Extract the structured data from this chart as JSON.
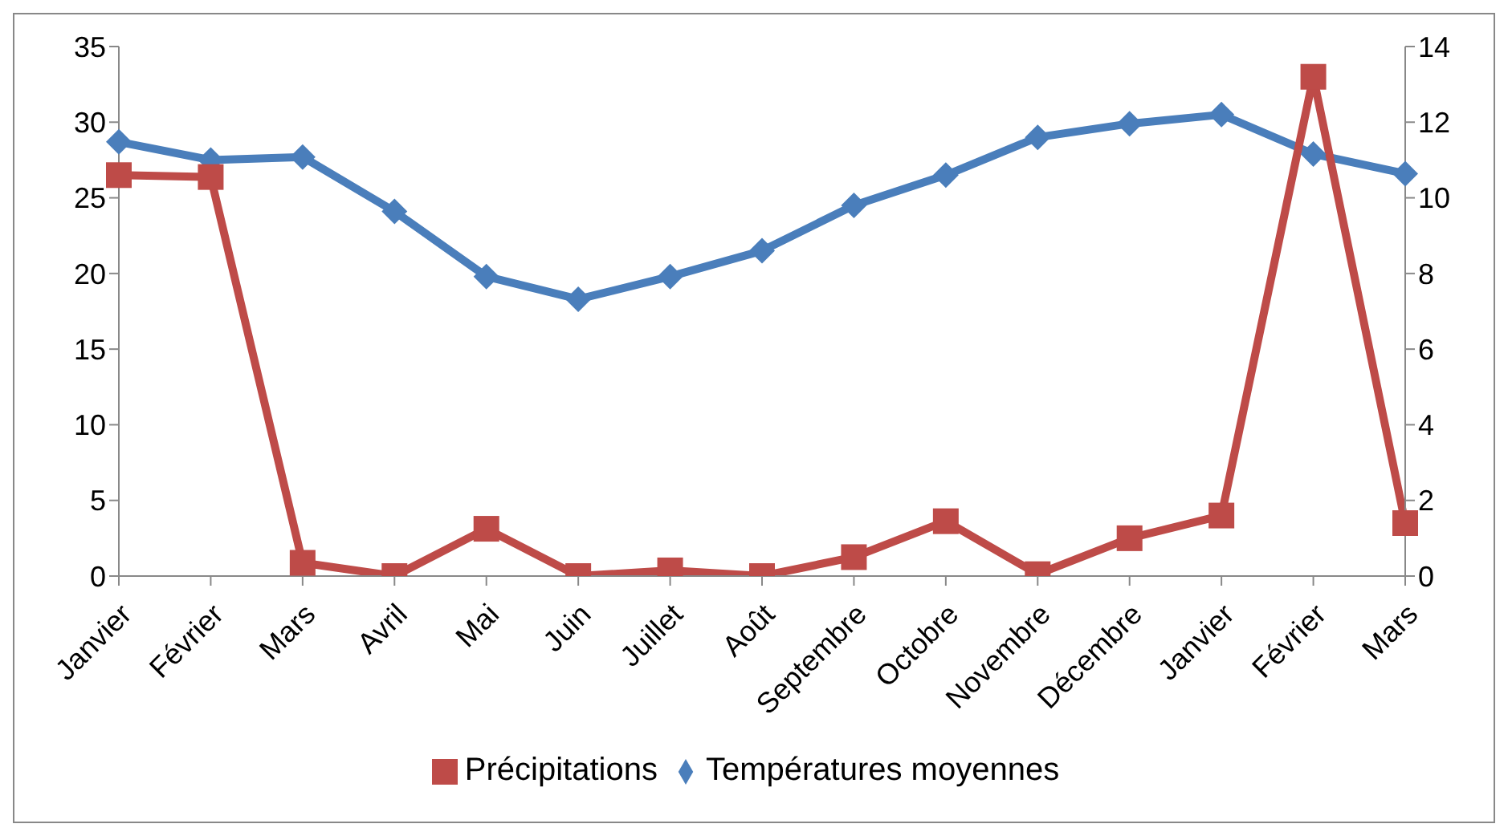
{
  "chart_data": {
    "type": "line",
    "categories": [
      "Janvier",
      "Février",
      "Mars",
      "Avril",
      "Mai",
      "Juin",
      "Juillet",
      "Août",
      "Septembre",
      "Octobre",
      "Novembre",
      "Décembre",
      "Janvier",
      "Février",
      "Mars"
    ],
    "series": [
      {
        "name": "Températures moyennes",
        "color": "#4a7ebb",
        "marker": "diamond",
        "values": [
          28.7,
          27.5,
          27.7,
          24.1,
          19.8,
          18.3,
          19.8,
          21.5,
          24.5,
          26.5,
          29,
          29.9,
          30.5,
          27.9,
          26.6
        ]
      },
      {
        "name": "Précipitations",
        "color": "#be4b48",
        "marker": "square",
        "axis": "y2",
        "values": [
          10.6,
          10.55,
          0.35,
          0,
          1.25,
          0,
          0.15,
          0,
          0.5,
          1.45,
          0.05,
          1,
          1.6,
          13.2,
          1.4
        ]
      }
    ],
    "ylim": [
      0,
      35
    ],
    "yticks": [
      0,
      5,
      10,
      15,
      20,
      25,
      30,
      35
    ],
    "y2lim": [
      0,
      14
    ],
    "y2ticks": [
      0,
      2,
      4,
      6,
      8,
      10,
      12,
      14
    ],
    "grid": false,
    "legend": "bottom",
    "line_style": "solid"
  }
}
